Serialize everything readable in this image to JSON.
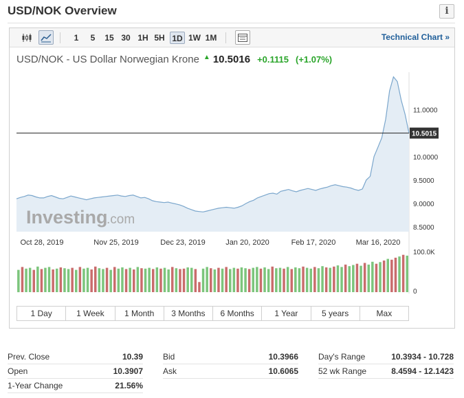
{
  "header": {
    "title": "USD/NOK Overview",
    "info_icon": "i"
  },
  "toolbar": {
    "chart_type_icons": [
      "candlestick-icon",
      "line-chart-icon"
    ],
    "intervals": [
      "1",
      "5",
      "15",
      "30",
      "1H",
      "5H",
      "1D",
      "1W",
      "1M"
    ],
    "active_interval": "1D",
    "extra_icon": "table-icon",
    "technical_chart_label": "Technical Chart »"
  },
  "quote": {
    "name": "USD/NOK - US Dollar Norwegian Krone",
    "price": "10.5016",
    "change": "+0.1115",
    "change_pct": "(+1.07%)",
    "direction": "up"
  },
  "chart_data": {
    "type": "area",
    "current_value_label": "10.5015",
    "current_value": 10.5015,
    "ylim": [
      8.4,
      11.8
    ],
    "y_ticks": [
      "11.0000",
      "10.5015",
      "10.0000",
      "9.5000",
      "9.0000",
      "8.5000"
    ],
    "y_tick_values": [
      11.0,
      10.0,
      9.5,
      9.0,
      8.5
    ],
    "x_tick_labels": [
      "Oct 28, 2019",
      "Nov 25, 2019",
      "Dec 23, 2019",
      "Jan 20, 2020",
      "Feb 17, 2020",
      "Mar 16, 2020"
    ],
    "values": [
      9.1,
      9.13,
      9.15,
      9.18,
      9.17,
      9.14,
      9.12,
      9.12,
      9.15,
      9.17,
      9.14,
      9.11,
      9.1,
      9.13,
      9.16,
      9.14,
      9.12,
      9.1,
      9.08,
      9.1,
      9.12,
      9.13,
      9.14,
      9.15,
      9.16,
      9.17,
      9.18,
      9.16,
      9.15,
      9.17,
      9.18,
      9.15,
      9.12,
      9.13,
      9.1,
      9.06,
      9.04,
      9.03,
      9.02,
      9.03,
      9.01,
      8.99,
      8.97,
      8.94,
      8.9,
      8.87,
      8.84,
      8.83,
      8.82,
      8.84,
      8.86,
      8.88,
      8.9,
      8.91,
      8.92,
      8.91,
      8.9,
      8.92,
      8.95,
      9.0,
      9.04,
      9.07,
      9.12,
      9.15,
      9.18,
      9.21,
      9.22,
      9.2,
      9.26,
      9.28,
      9.3,
      9.27,
      9.25,
      9.28,
      9.3,
      9.32,
      9.3,
      9.28,
      9.31,
      9.33,
      9.35,
      9.38,
      9.4,
      9.38,
      9.36,
      9.35,
      9.33,
      9.3,
      9.28,
      9.31,
      9.5,
      9.58,
      10.0,
      10.2,
      10.4,
      10.8,
      11.4,
      11.7,
      11.6,
      11.2,
      10.9,
      10.5
    ],
    "volume_label": "100.0K",
    "volume_min_label": "0",
    "volume_values": [
      0.55,
      0.62,
      0.58,
      0.6,
      0.55,
      0.63,
      0.57,
      0.6,
      0.62,
      0.56,
      0.58,
      0.61,
      0.59,
      0.57,
      0.6,
      0.55,
      0.62,
      0.58,
      0.6,
      0.56,
      0.63,
      0.59,
      0.57,
      0.6,
      0.55,
      0.62,
      0.58,
      0.61,
      0.57,
      0.6,
      0.56,
      0.62,
      0.59,
      0.58,
      0.6,
      0.57,
      0.61,
      0.58,
      0.6,
      0.56,
      0.62,
      0.59,
      0.57,
      0.58,
      0.61,
      0.6,
      0.57,
      0.25,
      0.58,
      0.62,
      0.59,
      0.56,
      0.6,
      0.58,
      0.62,
      0.57,
      0.6,
      0.58,
      0.61,
      0.59,
      0.57,
      0.6,
      0.62,
      0.58,
      0.61,
      0.57,
      0.63,
      0.59,
      0.6,
      0.58,
      0.62,
      0.57,
      0.61,
      0.59,
      0.63,
      0.6,
      0.58,
      0.62,
      0.59,
      0.64,
      0.61,
      0.6,
      0.63,
      0.66,
      0.62,
      0.68,
      0.64,
      0.67,
      0.7,
      0.65,
      0.72,
      0.68,
      0.75,
      0.7,
      0.74,
      0.78,
      0.82,
      0.8,
      0.85,
      0.88,
      0.92,
      0.9
    ],
    "volume_up_flags": [
      1,
      0,
      1,
      1,
      0,
      1,
      0,
      1,
      1,
      0,
      1,
      0,
      1,
      1,
      0,
      1,
      0,
      1,
      1,
      0,
      0,
      1,
      1,
      0,
      1,
      0,
      1,
      1,
      0,
      1,
      0,
      1,
      0,
      1,
      1,
      0,
      1,
      0,
      1,
      1,
      0,
      1,
      0,
      0,
      1,
      1,
      0,
      0,
      1,
      1,
      0,
      1,
      0,
      1,
      0,
      1,
      1,
      0,
      1,
      1,
      0,
      1,
      1,
      0,
      1,
      1,
      0,
      1,
      1,
      0,
      1,
      0,
      1,
      1,
      0,
      1,
      1,
      0,
      1,
      1,
      0,
      1,
      0,
      1,
      1,
      0,
      1,
      1,
      0,
      1,
      0,
      1,
      1,
      0,
      1,
      0,
      1,
      0,
      0,
      1,
      0,
      1
    ],
    "watermark": "Investing",
    "watermark_suffix": ".com",
    "colors": {
      "line": "#7aa6cc",
      "area": "#e4edf5",
      "vol_up": "#7cc57c",
      "vol_down": "#c96c6c",
      "price_label_bg": "#333333"
    }
  },
  "ranges": [
    "1 Day",
    "1 Week",
    "1 Month",
    "3 Months",
    "6 Months",
    "1 Year",
    "5 years",
    "Max"
  ],
  "stats": [
    [
      {
        "label": "Prev. Close",
        "value": "10.39"
      },
      {
        "label": "Open",
        "value": "10.3907"
      },
      {
        "label": "1-Year Change",
        "value": "21.56%"
      }
    ],
    [
      {
        "label": "Bid",
        "value": "10.3966"
      },
      {
        "label": "Ask",
        "value": "10.6065"
      }
    ],
    [
      {
        "label": "Day's Range",
        "value": "10.3934 - 10.728"
      },
      {
        "label": "52 wk Range",
        "value": "8.4594 - 12.1423"
      }
    ]
  ]
}
